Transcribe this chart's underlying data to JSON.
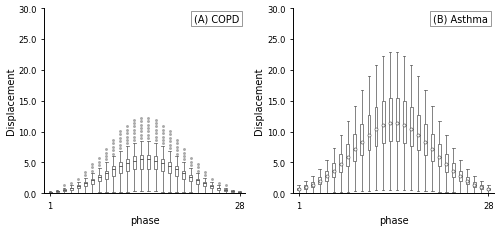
{
  "title_A": "(A) COPD",
  "title_B": "(B) Asthma",
  "xlabel": "phase",
  "ylabel": "Displacement",
  "ylim": [
    0,
    30
  ],
  "yticks": [
    0.0,
    5.0,
    10.0,
    15.0,
    20.0,
    25.0,
    30.0
  ],
  "n_phases": 28,
  "copd_median_peak": 5.5,
  "copd_q1_peak": 4.0,
  "copd_q3_peak": 6.2,
  "copd_wl_peak": 0.3,
  "copd_wh_peak": 8.5,
  "copd_outlier_peak": 12.5,
  "copd_sigma_scale": 5.2,
  "asthma_median_peak": 11.5,
  "asthma_q1_peak": 8.5,
  "asthma_q3_peak": 15.5,
  "asthma_wl_peak": 0.5,
  "asthma_wh_peak": 23.0,
  "asthma_sigma_scale": 5.0,
  "gray": "#606060",
  "light_gray": "#aaaaaa",
  "background": "#ffffff",
  "fig_width": 5.0,
  "fig_height": 2.32,
  "dpi": 100
}
